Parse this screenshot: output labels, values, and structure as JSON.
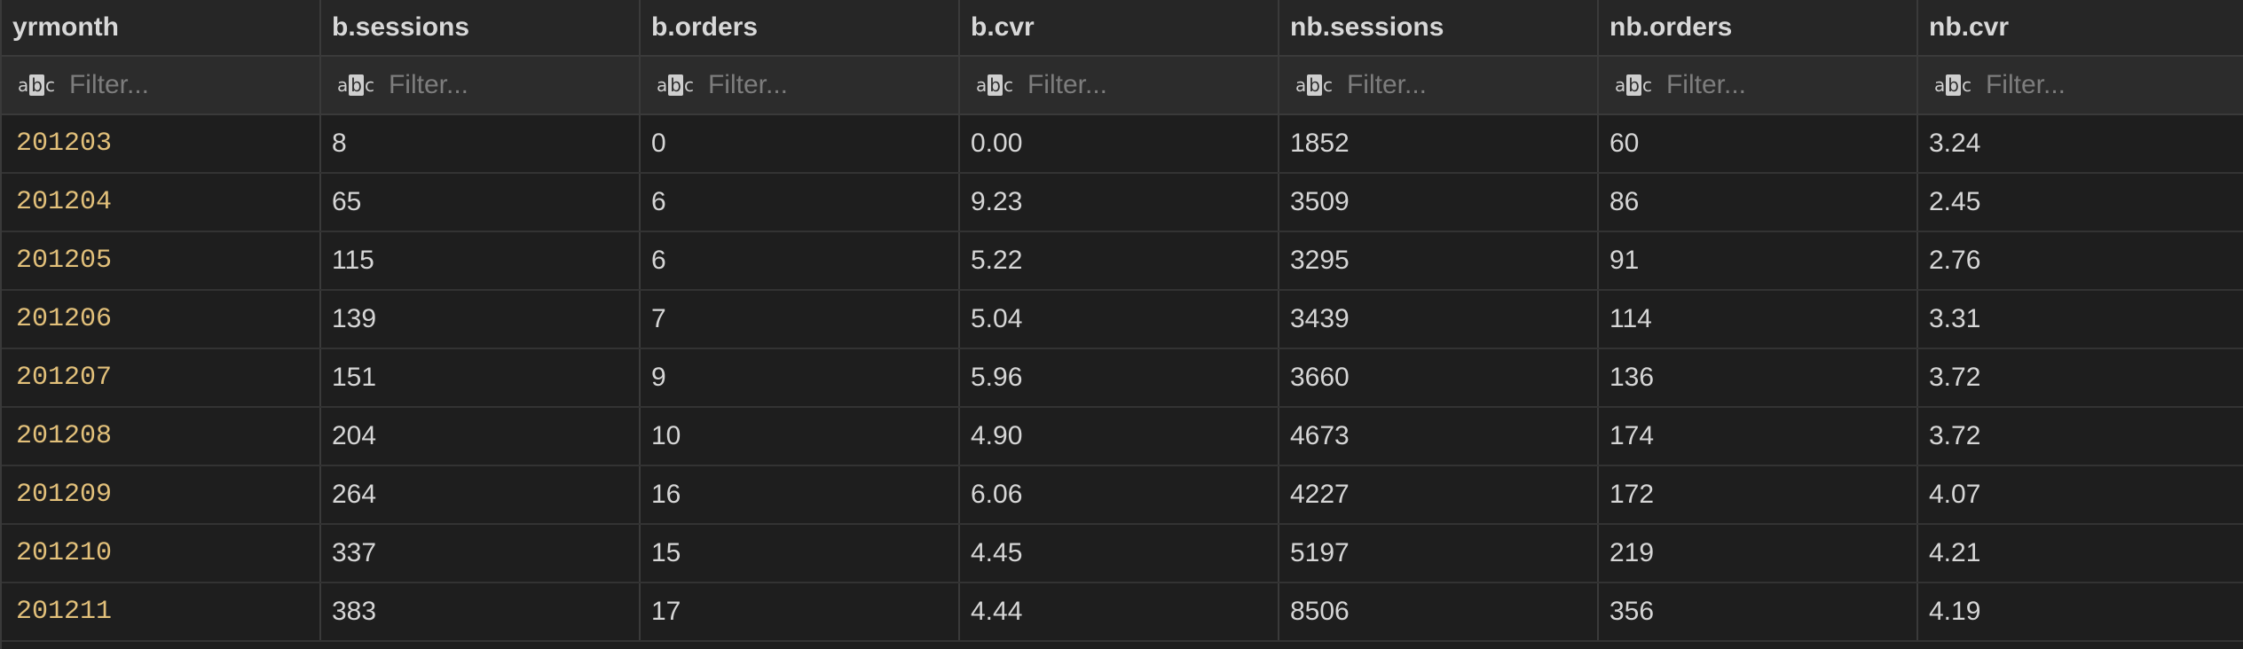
{
  "columns": [
    {
      "label": "yrmonth"
    },
    {
      "label": "b.sessions"
    },
    {
      "label": "b.orders"
    },
    {
      "label": "b.cvr"
    },
    {
      "label": "nb.sessions"
    },
    {
      "label": "nb.orders"
    },
    {
      "label": "nb.cvr"
    }
  ],
  "filter": {
    "placeholder": "Filter...",
    "icon": "abc-text-icon"
  },
  "rows": [
    [
      "201203",
      "8",
      "0",
      "0.00",
      "1852",
      "60",
      "3.24"
    ],
    [
      "201204",
      "65",
      "6",
      "9.23",
      "3509",
      "86",
      "2.45"
    ],
    [
      "201205",
      "115",
      "6",
      "5.22",
      "3295",
      "91",
      "2.76"
    ],
    [
      "201206",
      "139",
      "7",
      "5.04",
      "3439",
      "114",
      "3.31"
    ],
    [
      "201207",
      "151",
      "9",
      "5.96",
      "3660",
      "136",
      "3.72"
    ],
    [
      "201208",
      "204",
      "10",
      "4.90",
      "4673",
      "174",
      "3.72"
    ],
    [
      "201209",
      "264",
      "16",
      "6.06",
      "4227",
      "172",
      "4.07"
    ],
    [
      "201210",
      "337",
      "15",
      "4.45",
      "5197",
      "219",
      "4.21"
    ],
    [
      "201211",
      "383",
      "17",
      "4.44",
      "8506",
      "356",
      "4.19"
    ]
  ],
  "colors": {
    "background": "#1e1e1e",
    "key_text": "#e2c07a",
    "text": "#d6d6d6",
    "placeholder": "#7d7d7d"
  }
}
